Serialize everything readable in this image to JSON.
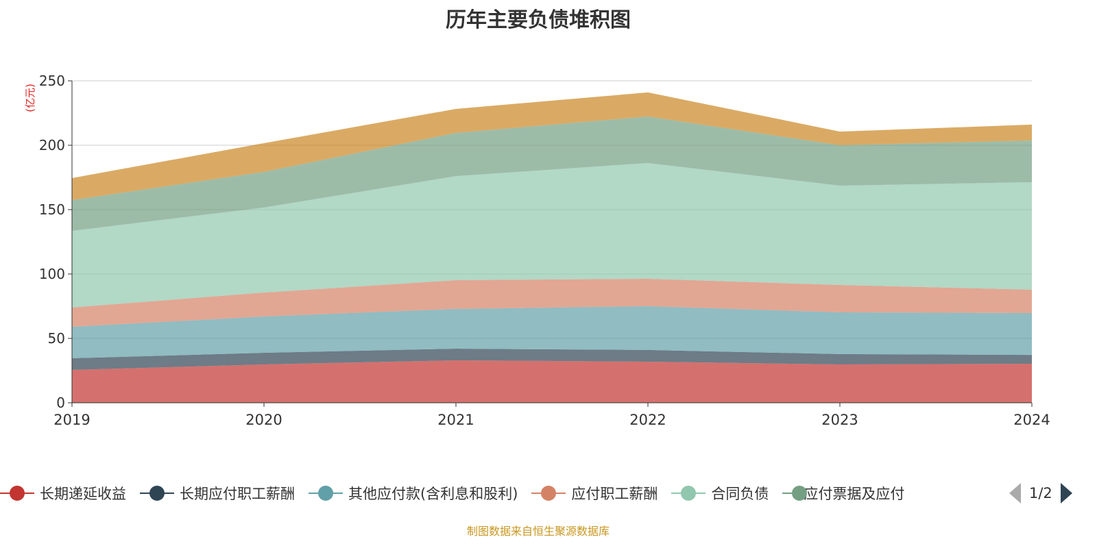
{
  "title": "历年主要负债堆积图",
  "footer": "制图数据来自恒生聚源数据库",
  "legend_pager": "1/2",
  "chart_data": {
    "type": "area",
    "stacked": true,
    "title": "历年主要负债堆积图",
    "ylabel": "(亿元)",
    "ylim": [
      0,
      250
    ],
    "yticks": [
      "0",
      "50",
      "100",
      "150",
      "200",
      "250"
    ],
    "categories": [
      "2019",
      "2020",
      "2021",
      "2022",
      "2023",
      "2024"
    ],
    "grid": true,
    "legend_position": "bottom",
    "series": [
      {
        "name": "长期递延收益",
        "color": "#c23531",
        "values": [
          25.5,
          29.8,
          33.0,
          31.9,
          29.8,
          30.3
        ]
      },
      {
        "name": "长期应付职工薪酬",
        "color": "#2f4554",
        "values": [
          9.1,
          9.0,
          9.0,
          9.1,
          8.0,
          6.9
        ]
      },
      {
        "name": "其他应付款(含利息和股利)",
        "color": "#61a0a8",
        "values": [
          24.4,
          28.2,
          30.9,
          34.0,
          32.4,
          32.5
        ]
      },
      {
        "name": "应付职工薪酬",
        "color": "#d48265",
        "values": [
          15.0,
          18.6,
          22.3,
          21.3,
          21.3,
          18.1
        ]
      },
      {
        "name": "合同负债",
        "color": "#91c7ae",
        "values": [
          59.5,
          66.0,
          80.8,
          89.9,
          77.1,
          83.5
        ]
      },
      {
        "name": "应付票据及应付",
        "color": "#749f83",
        "values": [
          23.9,
          27.7,
          33.6,
          36.1,
          31.4,
          32.4
        ]
      },
      {
        "color": "#ca8622",
        "values": [
          17.1,
          22.3,
          18.6,
          18.7,
          10.6,
          12.3
        ]
      }
    ]
  }
}
